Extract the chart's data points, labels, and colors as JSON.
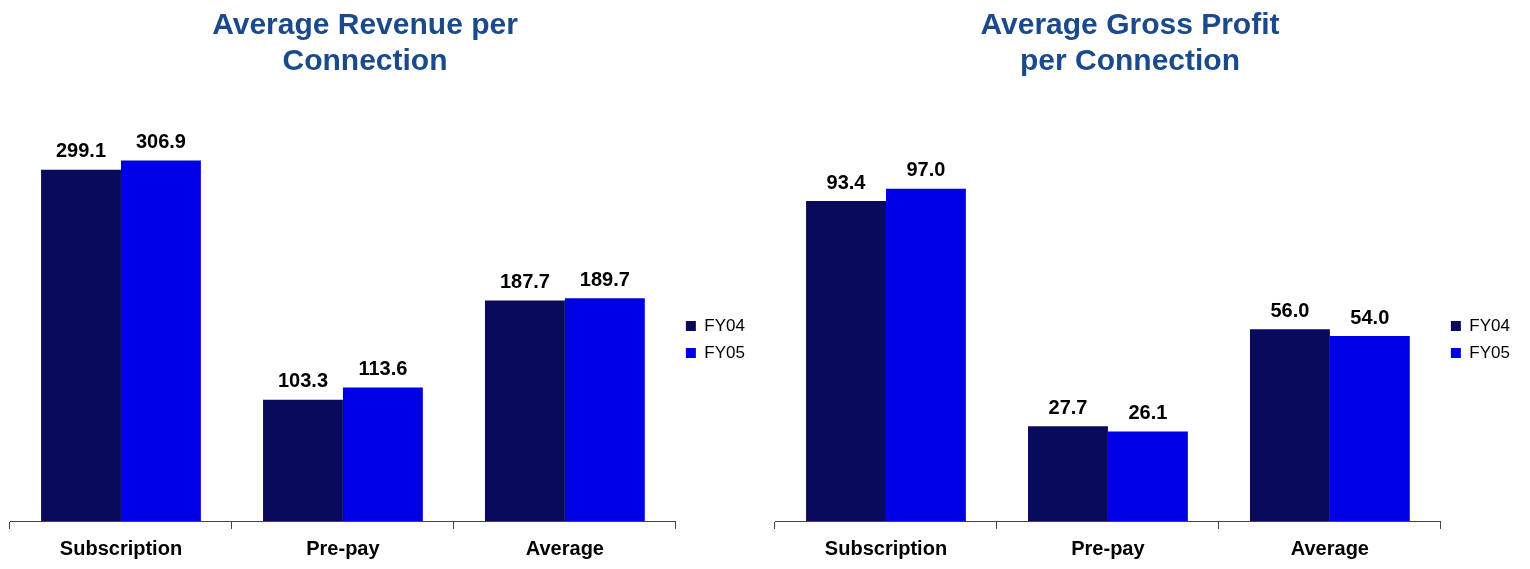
{
  "chart_data": [
    {
      "type": "bar",
      "title": "Average Revenue per Connection",
      "categories": [
        "Subscription",
        "Pre-pay",
        "Average"
      ],
      "series": [
        {
          "name": "FY04",
          "color": "#0a0a5c",
          "values": [
            299.1,
            103.3,
            187.7
          ],
          "value_labels": [
            "299.1",
            "103.3",
            "187.7"
          ]
        },
        {
          "name": "FY05",
          "color": "#0000e6",
          "values": [
            306.9,
            113.6,
            189.7
          ],
          "value_labels": [
            "306.9",
            "113.6",
            "189.7"
          ]
        }
      ],
      "legend": "right"
    },
    {
      "type": "bar",
      "title": "Average Gross Profit per Connection",
      "categories": [
        "Subscription",
        "Pre-pay",
        "Average"
      ],
      "series": [
        {
          "name": "FY04",
          "color": "#0a0a5c",
          "values": [
            93.4,
            27.7,
            56
          ],
          "value_labels": [
            "93.4",
            "27.7",
            "56.0"
          ]
        },
        {
          "name": "FY05",
          "color": "#0000e6",
          "values": [
            97,
            26.1,
            54
          ],
          "value_labels": [
            "97.0",
            "26.1",
            "54.0"
          ]
        }
      ],
      "legend": "right"
    }
  ]
}
